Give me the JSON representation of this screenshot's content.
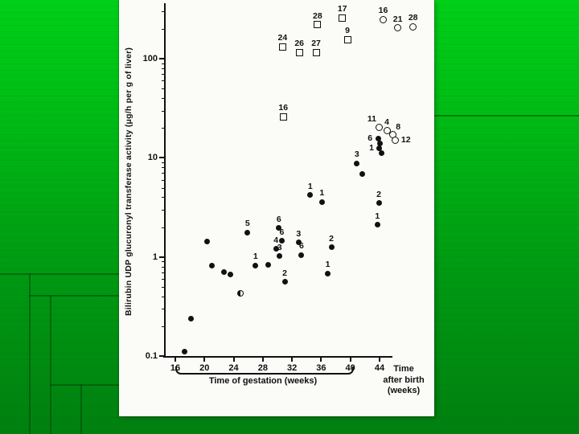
{
  "slide": {
    "bg_top": "#00d018",
    "bg_bottom": "#008010",
    "template_line_color": "#004208",
    "panel_bg": "#fbfbf7",
    "ink": "#111111"
  },
  "chart_data": {
    "type": "scatter",
    "y_scale": "log",
    "title": "",
    "ylabel": "Bilirubin UDP glucuronyl transferase activity (μg/h per g of liver)",
    "ylim": [
      0.1,
      350
    ],
    "xlim": [
      15,
      49.5
    ],
    "grid": false,
    "x_axis": {
      "ticks": [
        16,
        20,
        24,
        28,
        32,
        36,
        40,
        44
      ],
      "gestation_label": "Time of gestation (weeks)",
      "postnatal_label_lines": [
        "Time",
        "after birth",
        "(weeks)"
      ]
    },
    "y_axis": {
      "ticks": [
        "0.1",
        "1",
        "10",
        "100"
      ],
      "tick_values": [
        0.1,
        1,
        10,
        100
      ]
    },
    "series": [
      {
        "name": "filled-circles",
        "marker": "filled-circle",
        "points": [
          {
            "x": 17.3,
            "y": 0.11
          },
          {
            "x": 18.2,
            "y": 0.24
          },
          {
            "x": 20.4,
            "y": 1.42
          },
          {
            "x": 21.0,
            "y": 0.81
          },
          {
            "x": 22.7,
            "y": 0.7
          },
          {
            "x": 23.6,
            "y": 0.66
          },
          {
            "x": 25.9,
            "y": 1.77,
            "label": "5"
          },
          {
            "x": 27.0,
            "y": 0.82,
            "label": "1"
          },
          {
            "x": 28.7,
            "y": 0.84
          },
          {
            "x": 30.2,
            "y": 1.95,
            "label": "6"
          },
          {
            "x": 30.6,
            "y": 1.45,
            "label": "6"
          },
          {
            "x": 29.8,
            "y": 1.2,
            "label": "4"
          },
          {
            "x": 30.3,
            "y": 1.02,
            "label": "3"
          },
          {
            "x": 31.0,
            "y": 0.56,
            "label": "2"
          },
          {
            "x": 32.9,
            "y": 1.4,
            "label": "3"
          },
          {
            "x": 33.3,
            "y": 1.05,
            "label": "6"
          },
          {
            "x": 34.5,
            "y": 4.2,
            "label": "1"
          },
          {
            "x": 36.1,
            "y": 3.6,
            "label": "1"
          },
          {
            "x": 37.4,
            "y": 1.25,
            "label": "2"
          },
          {
            "x": 36.9,
            "y": 0.68,
            "label": "1"
          },
          {
            "x": 40.9,
            "y": 8.8,
            "label": "3"
          },
          {
            "x": 41.6,
            "y": 6.9
          },
          {
            "x": 43.8,
            "y": 15.7,
            "label": "6",
            "labelPos": "left"
          },
          {
            "x": 44.1,
            "y": 14.1
          },
          {
            "x": 44.0,
            "y": 12.5,
            "label": "1",
            "labelPos": "left"
          },
          {
            "x": 44.3,
            "y": 11.2
          },
          {
            "x": 43.9,
            "y": 3.5,
            "label": "2"
          },
          {
            "x": 43.7,
            "y": 2.1,
            "label": "1"
          }
        ]
      },
      {
        "name": "half-filled-circles",
        "marker": "half-filled-circle",
        "points": [
          {
            "x": 24.9,
            "y": 0.43
          }
        ]
      },
      {
        "name": "open-squares",
        "marker": "open-square",
        "points": [
          {
            "x": 30.7,
            "y": 132,
            "label": "24"
          },
          {
            "x": 33.0,
            "y": 116,
            "label": "26"
          },
          {
            "x": 35.3,
            "y": 116,
            "label": "27"
          },
          {
            "x": 35.5,
            "y": 220,
            "label": "28"
          },
          {
            "x": 38.9,
            "y": 258,
            "label": "17"
          },
          {
            "x": 39.6,
            "y": 156,
            "label": "9"
          },
          {
            "x": 30.8,
            "y": 26,
            "label": "16"
          }
        ]
      },
      {
        "name": "open-circles",
        "marker": "open-circle",
        "points": [
          {
            "x": 44.5,
            "y": 250,
            "label": "16"
          },
          {
            "x": 46.5,
            "y": 204,
            "label": "21"
          },
          {
            "x": 48.6,
            "y": 210,
            "label": "28"
          },
          {
            "x": 44.0,
            "y": 20.3,
            "label": "11",
            "labelPos": "top-left"
          },
          {
            "x": 45.0,
            "y": 18.7,
            "label": "4"
          },
          {
            "x": 45.8,
            "y": 17.1,
            "label": "8",
            "labelPos": "top-right"
          },
          {
            "x": 46.2,
            "y": 15.1,
            "label": "12",
            "labelPos": "right"
          }
        ]
      }
    ]
  }
}
